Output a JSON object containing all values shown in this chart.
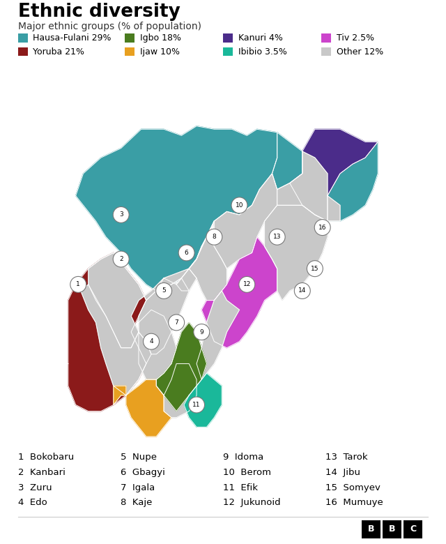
{
  "title": "Ethnic diversity",
  "subtitle": "Major ethnic groups (% of population)",
  "legend": [
    {
      "label": "Hausa-Fulani 29%",
      "color": "#3a9ea5"
    },
    {
      "label": "Igbo 18%",
      "color": "#4a7c1f"
    },
    {
      "label": "Kanuri 4%",
      "color": "#4b2c8a"
    },
    {
      "label": "Tiv 2.5%",
      "color": "#cc44cc"
    },
    {
      "label": "Yoruba 21%",
      "color": "#8b1a1a"
    },
    {
      "label": "Ijaw 10%",
      "color": "#e8a020"
    },
    {
      "label": "Ibibio 3.5%",
      "color": "#1ab89a"
    },
    {
      "label": "Other 12%",
      "color": "#c8c8c8"
    }
  ],
  "numbered_groups": [
    {
      "num": 1,
      "name": "Bokobaru"
    },
    {
      "num": 2,
      "name": "Kanbari"
    },
    {
      "num": 3,
      "name": "Zuru"
    },
    {
      "num": 4,
      "name": "Edo"
    },
    {
      "num": 5,
      "name": "Nupe"
    },
    {
      "num": 6,
      "name": "Gbagyi"
    },
    {
      "num": 7,
      "name": "Igala"
    },
    {
      "num": 8,
      "name": "Kaje"
    },
    {
      "num": 9,
      "name": "Idoma"
    },
    {
      "num": 10,
      "name": "Berom"
    },
    {
      "num": 11,
      "name": "Efik"
    },
    {
      "num": 12,
      "name": "Jukunoid"
    },
    {
      "num": 13,
      "name": "Tarok"
    },
    {
      "num": 14,
      "name": "Jibu"
    },
    {
      "num": 15,
      "name": "Somyev"
    },
    {
      "num": 16,
      "name": "Mumuye"
    }
  ],
  "background_color": "#ffffff"
}
